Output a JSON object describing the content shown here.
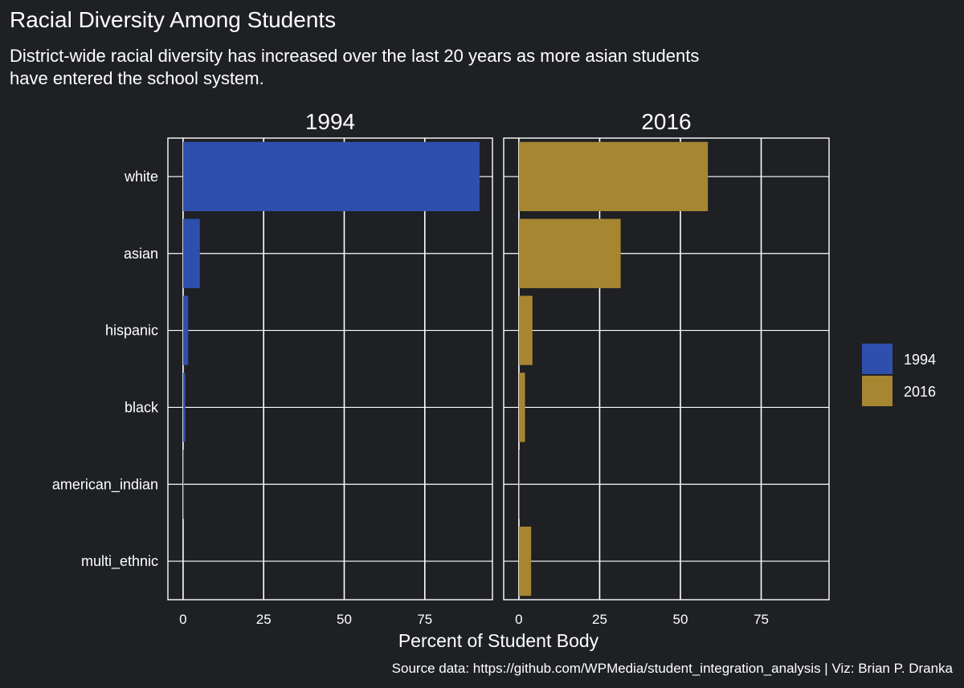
{
  "chart_data": {
    "type": "bar",
    "orientation": "horizontal",
    "title": "Racial Diversity Among Students",
    "subtitle": "District-wide racial diversity has increased over the last 20 years as more asian students have entered the school system.",
    "caption": "Source data: https://github.com/WPMedia/student_integration_analysis | Viz: Brian P. Dranka",
    "xlabel": "Percent of Student Body",
    "ylabel": "",
    "xlim": [
      0,
      96
    ],
    "x_ticks": [
      0,
      25,
      50,
      75
    ],
    "categories": [
      "white",
      "asian",
      "hispanic",
      "black",
      "american_indian",
      "multi_ethnic"
    ],
    "facets": [
      "1994",
      "2016"
    ],
    "series": [
      {
        "name": "1994",
        "color": "#2f4fad",
        "values": [
          92.0,
          5.2,
          1.6,
          0.7,
          0.2,
          0.0
        ]
      },
      {
        "name": "2016",
        "color": "#a68631",
        "values": [
          58.5,
          31.5,
          4.2,
          1.9,
          0.2,
          3.8
        ]
      }
    ],
    "legend": {
      "position": "right",
      "entries": [
        "1994",
        "2016"
      ]
    },
    "grid": {
      "major_x": true,
      "major_y": true
    },
    "background": "#1e2024",
    "text_color": "#ffffff",
    "grid_color": "#ffffff"
  }
}
